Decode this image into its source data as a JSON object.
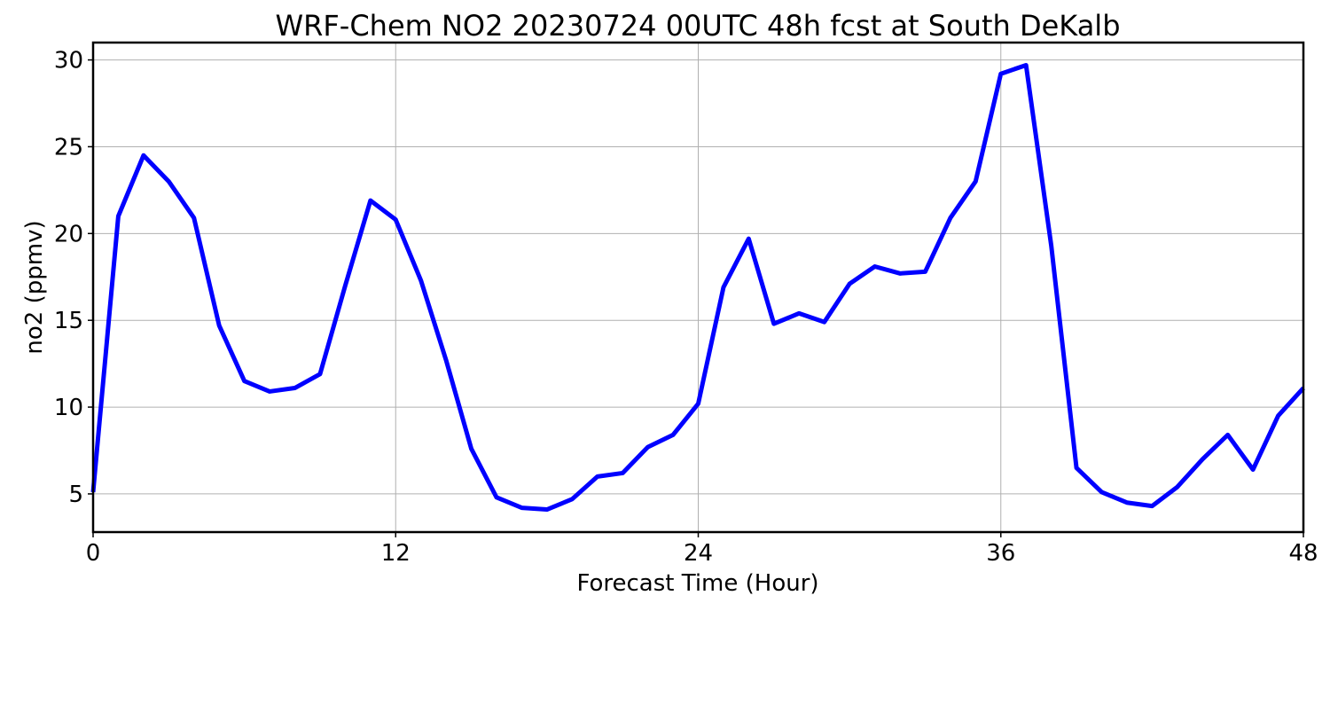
{
  "chart_data": {
    "type": "line",
    "title": "WRF-Chem NO2  20230724 00UTC 48h fcst at South DeKalb",
    "xlabel": "Forecast Time (Hour)",
    "ylabel": "no2  (ppmv)",
    "xlim": [
      0,
      48
    ],
    "ylim": [
      2.8,
      31
    ],
    "xticks": [
      0,
      12,
      24,
      36,
      48
    ],
    "yticks": [
      5,
      10,
      15,
      20,
      25,
      30
    ],
    "grid": true,
    "line_color": "#0000ff",
    "x": [
      0,
      1,
      2,
      3,
      4,
      5,
      6,
      7,
      8,
      9,
      10,
      11,
      12,
      13,
      14,
      15,
      16,
      17,
      18,
      19,
      20,
      21,
      22,
      23,
      24,
      25,
      26,
      27,
      28,
      29,
      30,
      31,
      32,
      33,
      34,
      35,
      36,
      37,
      38,
      39,
      40,
      41,
      42,
      43,
      44,
      45,
      46,
      47,
      48
    ],
    "series": [
      {
        "values": [
          5.1,
          21.0,
          24.5,
          23.0,
          20.9,
          14.7,
          11.5,
          10.9,
          11.1,
          11.9,
          17.0,
          21.9,
          20.8,
          17.3,
          12.7,
          7.6,
          4.8,
          4.2,
          4.1,
          4.7,
          6.0,
          6.2,
          7.7,
          8.4,
          10.2,
          16.9,
          19.7,
          14.8,
          15.4,
          14.9,
          17.1,
          18.1,
          17.7,
          17.8,
          20.9,
          23.0,
          29.2,
          29.7,
          19.3,
          6.5,
          5.1,
          4.5,
          4.3,
          5.4,
          7.0,
          8.4,
          6.4,
          9.5,
          11.1
        ]
      }
    ]
  }
}
